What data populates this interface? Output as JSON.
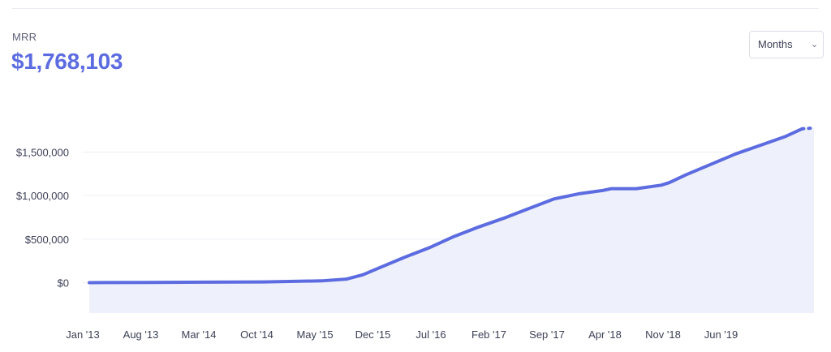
{
  "metric": {
    "label": "MRR",
    "value": "$1,768,103"
  },
  "period_select": {
    "selected": "Months",
    "icon": "chevron-down-icon"
  },
  "colors": {
    "accent": "#5c6ce0",
    "fill": "#eef0fc",
    "grid": "#eeeff4",
    "text": "#3a3f55"
  },
  "chart_data": {
    "type": "area",
    "x": [
      "2013-01",
      "2013-08",
      "2014-03",
      "2014-10",
      "2015-05",
      "2015-08",
      "2015-10",
      "2015-12",
      "2016-03",
      "2016-06",
      "2016-09",
      "2016-12",
      "2017-03",
      "2017-06",
      "2017-09",
      "2017-12",
      "2018-03",
      "2018-04",
      "2018-07",
      "2018-10",
      "2018-11",
      "2019-01",
      "2019-04",
      "2019-07",
      "2019-10",
      "2020-01",
      "2020-03"
    ],
    "values": [
      0,
      2000,
      5000,
      8000,
      20000,
      40000,
      90000,
      170000,
      290000,
      400000,
      530000,
      640000,
      740000,
      850000,
      960000,
      1020000,
      1060000,
      1080000,
      1080000,
      1120000,
      1150000,
      1240000,
      1360000,
      1480000,
      1580000,
      1680000,
      1768103
    ],
    "projected": {
      "x": [
        "2020-03",
        "2020-04"
      ],
      "values": [
        1768103,
        1775000
      ]
    },
    "x_ticks": [
      "Jan '13",
      "Aug '13",
      "Mar '14",
      "Oct '14",
      "May '15",
      "Dec '15",
      "Jul '16",
      "Feb '17",
      "Sep '17",
      "Apr '18",
      "Nov '18",
      "Jun '19"
    ],
    "y_ticks": [
      {
        "value": 0,
        "label": "$0"
      },
      {
        "value": 500000,
        "label": "$500,000"
      },
      {
        "value": 1000000,
        "label": "$1,000,000"
      },
      {
        "value": 1500000,
        "label": "$1,500,000"
      }
    ],
    "ylim": [
      -350000,
      1850000
    ],
    "grid": true,
    "title": "",
    "xlabel": "",
    "ylabel": ""
  }
}
